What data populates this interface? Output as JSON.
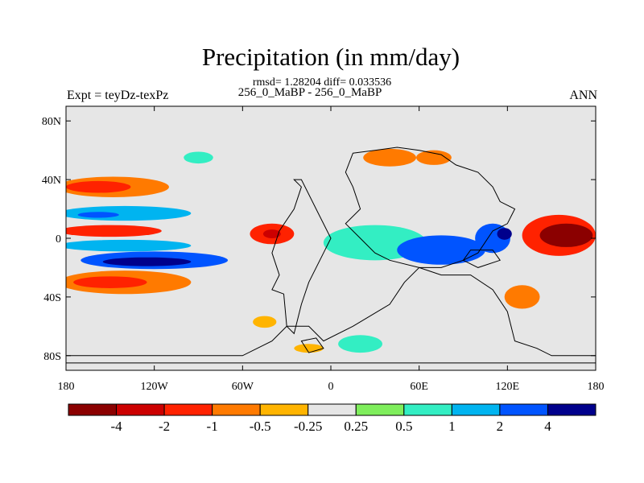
{
  "chart_data": {
    "type": "heatmap",
    "title": "Precipitation (in mm/day)",
    "stats_line": "rmsd= 1.28204  diff= 0.033536",
    "subtitle": "256_0_MaBP - 256_0_MaBP",
    "left_label": "Expt = teyDz-texPz",
    "right_label": "ANN",
    "xlabel": "",
    "ylabel": "",
    "xlim": [
      -180,
      180
    ],
    "ylim": [
      -90,
      90
    ],
    "x_ticks": [
      {
        "value": -180,
        "label": "180"
      },
      {
        "value": -120,
        "label": "120W"
      },
      {
        "value": -60,
        "label": "60W"
      },
      {
        "value": 0,
        "label": "0"
      },
      {
        "value": 60,
        "label": "60E"
      },
      {
        "value": 120,
        "label": "120E"
      },
      {
        "value": 180,
        "label": "180"
      }
    ],
    "y_ticks": [
      {
        "value": 80,
        "label": "80N"
      },
      {
        "value": 40,
        "label": "40N"
      },
      {
        "value": 0,
        "label": "0"
      },
      {
        "value": -40,
        "label": "40S"
      },
      {
        "value": -80,
        "label": "80S"
      }
    ],
    "colorbar": {
      "colors": [
        "#8b0000",
        "#cc0000",
        "#ff2200",
        "#ff7a00",
        "#ffb400",
        "#e6e6e6",
        "#7fee5c",
        "#33eec3",
        "#00b4f0",
        "#0054ff",
        "#00008c"
      ],
      "labels": [
        "-4",
        "-2",
        "-1",
        "-0.5",
        "-0.25",
        "0.25",
        "0.5",
        "1",
        "2",
        "4"
      ]
    },
    "regions": [
      {
        "name": "north-pacific-dry-band",
        "lon": -148,
        "lat": 35,
        "rlon": 38,
        "rlat": 7,
        "level": 3
      },
      {
        "name": "north-pacific-dry-core",
        "lon": -158,
        "lat": 35,
        "rlon": 22,
        "rlat": 4,
        "level": 2
      },
      {
        "name": "north-pacific-wet-band",
        "lon": -140,
        "lat": 17,
        "rlon": 45,
        "rlat": 5,
        "level": 8
      },
      {
        "name": "north-pacific-wet-core",
        "lon": -158,
        "lat": 16,
        "rlon": 14,
        "rlat": 2,
        "level": 9
      },
      {
        "name": "equatorial-pacific-dry",
        "lon": -150,
        "lat": 5,
        "rlon": 35,
        "rlat": 4,
        "level": 2
      },
      {
        "name": "equatorial-pacific-wet",
        "lon": -140,
        "lat": -5,
        "rlon": 45,
        "rlat": 4,
        "level": 8
      },
      {
        "name": "south-pacific-wet-band",
        "lon": -120,
        "lat": -15,
        "rlon": 50,
        "rlat": 6,
        "level": 9
      },
      {
        "name": "south-pacific-wet-core",
        "lon": -125,
        "lat": -16,
        "rlon": 30,
        "rlat": 3,
        "level": 10
      },
      {
        "name": "south-pacific-dry-band",
        "lon": -140,
        "lat": -30,
        "rlon": 45,
        "rlat": 8,
        "level": 3
      },
      {
        "name": "south-pacific-dry-core",
        "lon": -150,
        "lat": -30,
        "rlon": 25,
        "rlat": 4,
        "level": 2
      },
      {
        "name": "atlantic-dry",
        "lon": -40,
        "lat": 3,
        "rlon": 15,
        "rlat": 7,
        "level": 2
      },
      {
        "name": "atlantic-dry-core",
        "lon": -40,
        "lat": 3,
        "rlon": 6,
        "rlat": 3,
        "level": 1
      },
      {
        "name": "africa-wet",
        "lon": 30,
        "lat": -3,
        "rlon": 35,
        "rlat": 12,
        "level": 7
      },
      {
        "name": "indian-ocean-wet",
        "lon": 75,
        "lat": -8,
        "rlon": 30,
        "rlat": 10,
        "level": 9
      },
      {
        "name": "maritime-wet",
        "lon": 110,
        "lat": 0,
        "rlon": 12,
        "rlat": 10,
        "level": 9
      },
      {
        "name": "maritime-wet-core",
        "lon": 118,
        "lat": 3,
        "rlon": 5,
        "rlat": 4,
        "level": 10
      },
      {
        "name": "west-pacific-dry",
        "lon": 155,
        "lat": 2,
        "rlon": 25,
        "rlat": 14,
        "level": 2
      },
      {
        "name": "west-pacific-dry-core",
        "lon": 160,
        "lat": 2,
        "rlon": 18,
        "rlat": 8,
        "level": 0
      },
      {
        "name": "asia-dry",
        "lon": 40,
        "lat": 55,
        "rlon": 18,
        "rlat": 6,
        "level": 3
      },
      {
        "name": "asia-dry-east",
        "lon": 70,
        "lat": 55,
        "rlon": 12,
        "rlat": 5,
        "level": 3
      },
      {
        "name": "north-land-wet",
        "lon": -90,
        "lat": 55,
        "rlon": 10,
        "rlat": 4,
        "level": 7
      },
      {
        "name": "australia-dry",
        "lon": 130,
        "lat": -40,
        "rlon": 12,
        "rlat": 8,
        "level": 3
      },
      {
        "name": "south-land-dry",
        "lon": -45,
        "lat": -57,
        "rlon": 8,
        "rlat": 4,
        "level": 4
      },
      {
        "name": "antarctic-dry",
        "lon": -15,
        "lat": -75,
        "rlon": 10,
        "rlat": 3,
        "level": 4
      },
      {
        "name": "southern-ocean-wet",
        "lon": 20,
        "lat": -72,
        "rlon": 15,
        "rlat": 6,
        "level": 7
      }
    ],
    "land_outlines": [
      {
        "name": "continent-west",
        "points": [
          [
            -25,
            40
          ],
          [
            -20,
            35
          ],
          [
            -25,
            20
          ],
          [
            -35,
            5
          ],
          [
            -40,
            -10
          ],
          [
            -35,
            -25
          ],
          [
            -40,
            -35
          ],
          [
            -32,
            -38
          ],
          [
            -30,
            -60
          ],
          [
            -25,
            -65
          ],
          [
            -20,
            -45
          ],
          [
            -15,
            -30
          ],
          [
            -5,
            -10
          ],
          [
            0,
            0
          ],
          [
            -10,
            20
          ],
          [
            -20,
            40
          ]
        ]
      },
      {
        "name": "continent-central",
        "points": [
          [
            15,
            58
          ],
          [
            30,
            60
          ],
          [
            45,
            62
          ],
          [
            60,
            60
          ],
          [
            75,
            57
          ],
          [
            85,
            50
          ],
          [
            100,
            45
          ],
          [
            110,
            35
          ],
          [
            115,
            25
          ],
          [
            125,
            20
          ],
          [
            120,
            10
          ],
          [
            110,
            5
          ],
          [
            100,
            -10
          ],
          [
            90,
            -15
          ],
          [
            75,
            -20
          ],
          [
            60,
            -20
          ],
          [
            40,
            -15
          ],
          [
            30,
            -10
          ],
          [
            20,
            0
          ],
          [
            10,
            10
          ],
          [
            20,
            20
          ],
          [
            15,
            35
          ],
          [
            10,
            45
          ]
        ]
      },
      {
        "name": "continent-south",
        "points": [
          [
            60,
            -20
          ],
          [
            75,
            -25
          ],
          [
            95,
            -25
          ],
          [
            110,
            -35
          ],
          [
            120,
            -50
          ],
          [
            125,
            -70
          ],
          [
            140,
            -75
          ],
          [
            150,
            -80
          ],
          [
            180,
            -80
          ],
          [
            180,
            -85
          ],
          [
            -180,
            -85
          ],
          [
            -180,
            -80
          ],
          [
            -60,
            -80
          ],
          [
            -40,
            -70
          ],
          [
            -30,
            -60
          ],
          [
            -15,
            -60
          ],
          [
            -5,
            -70
          ],
          [
            15,
            -60
          ],
          [
            40,
            -45
          ],
          [
            50,
            -30
          ]
        ]
      },
      {
        "name": "island-west",
        "points": [
          [
            -20,
            -70
          ],
          [
            -10,
            -68
          ],
          [
            -5,
            -75
          ],
          [
            -15,
            -78
          ]
        ]
      },
      {
        "name": "island-east",
        "points": [
          [
            95,
            -8
          ],
          [
            110,
            -8
          ],
          [
            115,
            -15
          ],
          [
            100,
            -20
          ],
          [
            90,
            -15
          ]
        ]
      }
    ]
  }
}
